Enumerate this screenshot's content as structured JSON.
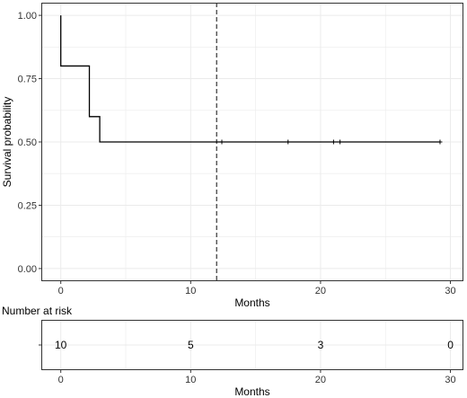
{
  "chart_data": [
    {
      "type": "line",
      "subtype": "kaplan-meier-step",
      "xlabel": "Months",
      "ylabel": "Survival probability",
      "xlim": [
        -1.5,
        31
      ],
      "ylim": [
        -0.05,
        1.05
      ],
      "x_ticks": [
        0,
        10,
        20,
        30
      ],
      "y_ticks": [
        0.0,
        0.25,
        0.5,
        0.75,
        1.0
      ],
      "y_tick_labels": [
        "0.00",
        "0.25",
        "0.50",
        "0.75",
        "1.00"
      ],
      "grid": true,
      "colors": {
        "line": "#000000",
        "grid": "#ebebeb",
        "panel_border": "#333333"
      },
      "steps": [
        {
          "x": 0.0,
          "y": 1.0
        },
        {
          "x": 0.0,
          "y": 0.8
        },
        {
          "x": 2.2,
          "y": 0.6
        },
        {
          "x": 3.0,
          "y": 0.5
        },
        {
          "x": 29.2,
          "y": 0.5
        }
      ],
      "censor_points": [
        {
          "x": 12.4,
          "y": 0.5
        },
        {
          "x": 17.5,
          "y": 0.5
        },
        {
          "x": 21.0,
          "y": 0.5
        },
        {
          "x": 21.5,
          "y": 0.5
        },
        {
          "x": 29.2,
          "y": 0.5
        }
      ],
      "reference_line": {
        "x": 12.0,
        "style": "dashed"
      }
    },
    {
      "type": "table",
      "title": "Number at risk",
      "xlabel": "Months",
      "xlim": [
        -1.5,
        31
      ],
      "x_ticks": [
        0,
        10,
        20,
        30
      ],
      "values": [
        {
          "x": 0,
          "n": "10"
        },
        {
          "x": 10,
          "n": "5"
        },
        {
          "x": 20,
          "n": "3"
        },
        {
          "x": 30,
          "n": "0"
        }
      ]
    }
  ]
}
